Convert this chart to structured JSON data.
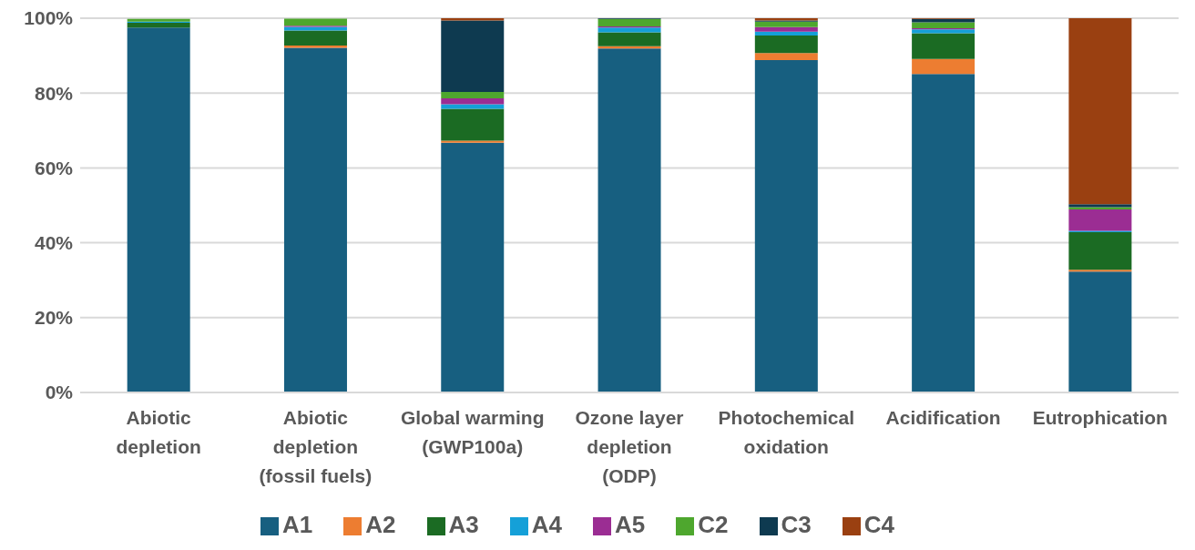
{
  "chart_data": {
    "type": "bar",
    "stacked": true,
    "categories": [
      "Abiotic depletion",
      "Abiotic depletion (fossil fuels)",
      "Global warming (GWP100a)",
      "Ozone layer depletion (ODP)",
      "Photochemical oxidation",
      "Acidification",
      "Eutrophication"
    ],
    "series": [
      {
        "name": "A1",
        "color": "#175f80",
        "values": [
          97.5,
          92.1,
          66.7,
          91.9,
          88.8,
          85.1,
          32.3
        ]
      },
      {
        "name": "A2",
        "color": "#ed7d31",
        "values": [
          null,
          0.6,
          0.6,
          0.6,
          1.9,
          4.0,
          0.5
        ]
      },
      {
        "name": "A3",
        "color": "#1b6b23",
        "values": [
          1.3,
          4.0,
          8.5,
          3.7,
          4.7,
          6.9,
          10.0
        ]
      },
      {
        "name": "A4",
        "color": "#15a0d8",
        "values": [
          0.3,
          1.0,
          1.2,
          1.3,
          1.0,
          1.0,
          0.4
        ]
      },
      {
        "name": "A5",
        "color": "#9b2d93",
        "values": [
          null,
          0.3,
          1.6,
          0.3,
          1.2,
          0.3,
          5.7
        ]
      },
      {
        "name": "C2",
        "color": "#4ea72e",
        "values": [
          0.7,
          1.9,
          1.7,
          2.0,
          1.5,
          1.6,
          0.6
        ]
      },
      {
        "name": "C3",
        "color": "#0e3a50",
        "values": [
          0,
          null,
          19.1,
          0.2,
          0.3,
          0.9,
          0.8
        ]
      },
      {
        "name": "C4",
        "color": "#9a4011",
        "values": [
          0,
          0,
          0.6,
          0,
          0.6,
          0.2,
          49.7
        ]
      }
    ],
    "ylim": [
      0,
      100
    ],
    "yticks": [
      {
        "value": 0,
        "label": "0%"
      },
      {
        "value": 20,
        "label": "20%"
      },
      {
        "value": 40,
        "label": "40%"
      },
      {
        "value": 60,
        "label": "60%"
      },
      {
        "value": 80,
        "label": "80%"
      },
      {
        "value": 100,
        "label": "100%"
      }
    ],
    "grid": "y",
    "legend": "bottom"
  }
}
